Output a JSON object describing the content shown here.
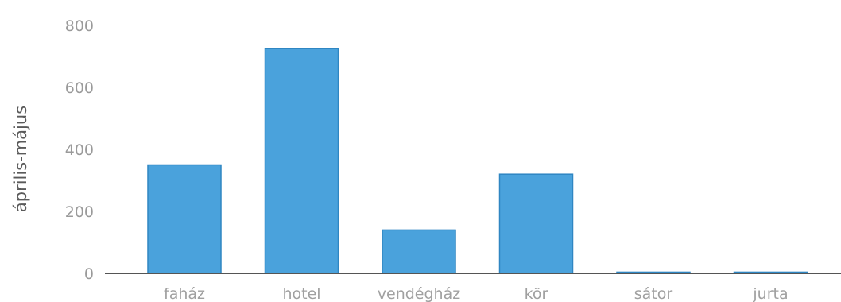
{
  "chart_data": {
    "type": "bar",
    "categories": [
      "faház",
      "hotel",
      "vendégház",
      "kör",
      "sátor",
      "jurta"
    ],
    "values": [
      350,
      725,
      140,
      320,
      4,
      4
    ],
    "ylabel": "április-május",
    "ylim": [
      0,
      800
    ],
    "yticks": [
      0,
      200,
      400,
      600,
      800
    ],
    "colors": {
      "bar": "#4aa2dc",
      "bar_edge": "#2f86c2"
    },
    "grid": false,
    "legend": "none"
  }
}
